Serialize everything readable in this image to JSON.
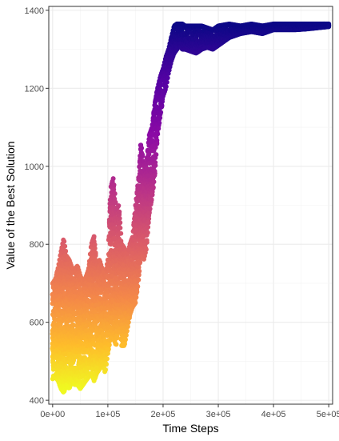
{
  "chart_data": {
    "type": "scatter",
    "xlabel": "Time Steps",
    "ylabel": "Value of the Best Solution",
    "xlim": [
      -7000,
      507000
    ],
    "ylim": [
      390,
      1410
    ],
    "x_ticks": [
      0,
      100000,
      200000,
      300000,
      400000,
      500000
    ],
    "x_tick_labels": [
      "0e+00",
      "1e+05",
      "2e+05",
      "3e+05",
      "4e+05",
      "5e+05"
    ],
    "y_ticks": [
      400,
      600,
      800,
      1000,
      1200,
      1400
    ],
    "y_tick_labels": [
      "400",
      "600",
      "800",
      "1000",
      "1200",
      "1400"
    ],
    "grid": true,
    "legend": "none",
    "color_scale": "plasma (light yellow at low values to dark purple at high values)",
    "colors": {
      "low": "#f0f921",
      "mid_low": "#fca636",
      "mid": "#e16462",
      "mid_high": "#b12a90",
      "high_mid": "#6a00a8",
      "high": "#0d0887"
    },
    "series": [
      {
        "envelope": {
          "x": [
            0,
            5000,
            10000,
            15000,
            20000,
            25000,
            30000,
            35000,
            40000,
            45000,
            50000,
            55000,
            60000,
            65000,
            70000,
            75000,
            80000,
            85000,
            90000,
            95000,
            100000,
            105000,
            110000,
            115000,
            120000,
            125000,
            130000,
            135000,
            140000,
            145000,
            150000,
            155000,
            160000,
            165000,
            170000,
            175000,
            180000,
            185000,
            190000,
            195000,
            200000,
            205000,
            210000,
            215000,
            220000,
            225000,
            230000,
            235000,
            240000,
            250000,
            260000,
            270000,
            280000,
            290000,
            300000,
            320000,
            340000,
            360000,
            380000,
            400000,
            420000,
            440000,
            460000,
            480000,
            500000
          ],
          "upper": [
            700,
            710,
            740,
            780,
            815,
            770,
            760,
            740,
            735,
            745,
            720,
            700,
            715,
            735,
            800,
            820,
            745,
            760,
            735,
            720,
            760,
            945,
            970,
            890,
            900,
            800,
            790,
            770,
            800,
            820,
            900,
            960,
            1060,
            1000,
            1010,
            1080,
            1100,
            1160,
            1200,
            1230,
            1250,
            1280,
            1300,
            1330,
            1360,
            1365,
            1365,
            1365,
            1360,
            1360,
            1360,
            1360,
            1355,
            1350,
            1360,
            1365,
            1360,
            1365,
            1360,
            1365,
            1365,
            1365,
            1365,
            1365,
            1365
          ],
          "lower": [
            455,
            460,
            450,
            430,
            420,
            440,
            430,
            450,
            440,
            440,
            430,
            440,
            450,
            460,
            470,
            450,
            470,
            480,
            500,
            470,
            520,
            560,
            560,
            540,
            600,
            540,
            540,
            580,
            620,
            640,
            650,
            700,
            780,
            760,
            790,
            880,
            920,
            980,
            1080,
            1130,
            1180,
            1200,
            1240,
            1270,
            1290,
            1300,
            1310,
            1300,
            1300,
            1295,
            1290,
            1300,
            1305,
            1300,
            1310,
            1330,
            1340,
            1345,
            1340,
            1350,
            1350,
            1350,
            1352,
            1355,
            1358
          ]
        }
      }
    ]
  }
}
